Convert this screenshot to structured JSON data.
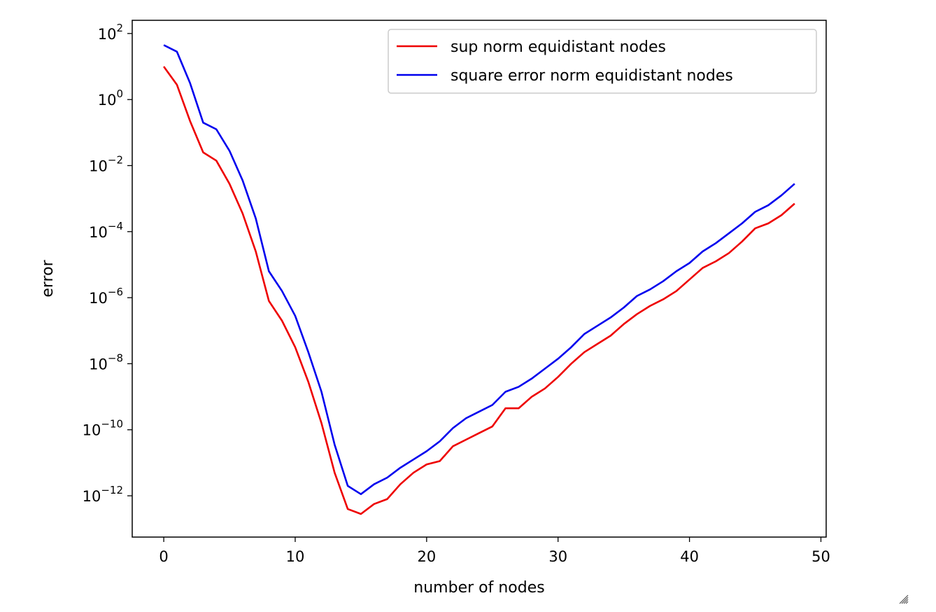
{
  "chart_data": {
    "type": "line",
    "xlabel": "number of nodes",
    "ylabel": "error",
    "xlim": [
      -2.4,
      50.4
    ],
    "ylim_log10": [
      -13.25,
      2.4
    ],
    "yscale": "log",
    "grid": false,
    "legend_position": "top-right",
    "x_ticks": [
      0,
      10,
      20,
      30,
      40,
      50
    ],
    "x_tick_labels": [
      "0",
      "10",
      "20",
      "30",
      "40",
      "50"
    ],
    "y_ticks_log10": [
      2,
      0,
      -2,
      -4,
      -6,
      -8,
      -10,
      -12
    ],
    "y_tick_labels": [
      {
        "base": "10",
        "exp": "2"
      },
      {
        "base": "10",
        "exp": "0"
      },
      {
        "base": "10",
        "exp": "−2"
      },
      {
        "base": "10",
        "exp": "−4"
      },
      {
        "base": "10",
        "exp": "−6"
      },
      {
        "base": "10",
        "exp": "−8"
      },
      {
        "base": "10",
        "exp": "−10"
      },
      {
        "base": "10",
        "exp": "−12"
      }
    ],
    "x": [
      0,
      1,
      2,
      3,
      4,
      5,
      6,
      7,
      8,
      9,
      10,
      11,
      12,
      13,
      14,
      15,
      16,
      17,
      18,
      19,
      20,
      21,
      22,
      23,
      24,
      25,
      26,
      27,
      28,
      29,
      30,
      31,
      32,
      33,
      34,
      35,
      36,
      37,
      38,
      39,
      40,
      41,
      42,
      43,
      44,
      45,
      46,
      47,
      48
    ],
    "series": [
      {
        "name": "sup norm equidistant nodes",
        "color": "#ee0000",
        "log10_values": [
          1.0,
          0.45,
          -0.65,
          -1.6,
          -1.85,
          -2.55,
          -3.45,
          -4.6,
          -6.1,
          -6.7,
          -7.5,
          -8.55,
          -9.8,
          -11.3,
          -12.4,
          -12.55,
          -12.25,
          -12.1,
          -11.65,
          -11.3,
          -11.05,
          -10.95,
          -10.5,
          -10.3,
          -10.1,
          -9.9,
          -9.35,
          -9.35,
          -9.0,
          -8.75,
          -8.4,
          -8.0,
          -7.65,
          -7.4,
          -7.15,
          -6.8,
          -6.5,
          -6.25,
          -6.05,
          -5.8,
          -5.45,
          -5.1,
          -4.9,
          -4.65,
          -4.3,
          -3.9,
          -3.75,
          -3.5,
          -3.15
        ]
      },
      {
        "name": "square error norm equidistant nodes",
        "color": "#0000ee",
        "log10_values": [
          1.65,
          1.45,
          0.5,
          -0.7,
          -0.9,
          -1.55,
          -2.45,
          -3.6,
          -5.2,
          -5.8,
          -6.55,
          -7.65,
          -8.85,
          -10.45,
          -11.7,
          -11.95,
          -11.65,
          -11.45,
          -11.15,
          -10.9,
          -10.65,
          -10.35,
          -9.95,
          -9.65,
          -9.45,
          -9.25,
          -8.85,
          -8.7,
          -8.45,
          -8.15,
          -7.85,
          -7.5,
          -7.1,
          -6.85,
          -6.6,
          -6.3,
          -5.95,
          -5.75,
          -5.5,
          -5.2,
          -4.95,
          -4.6,
          -4.35,
          -4.05,
          -3.75,
          -3.4,
          -3.2,
          -2.9,
          -2.55
        ]
      }
    ]
  },
  "colors": {
    "background": "#ffffff",
    "axes": "#000000"
  }
}
